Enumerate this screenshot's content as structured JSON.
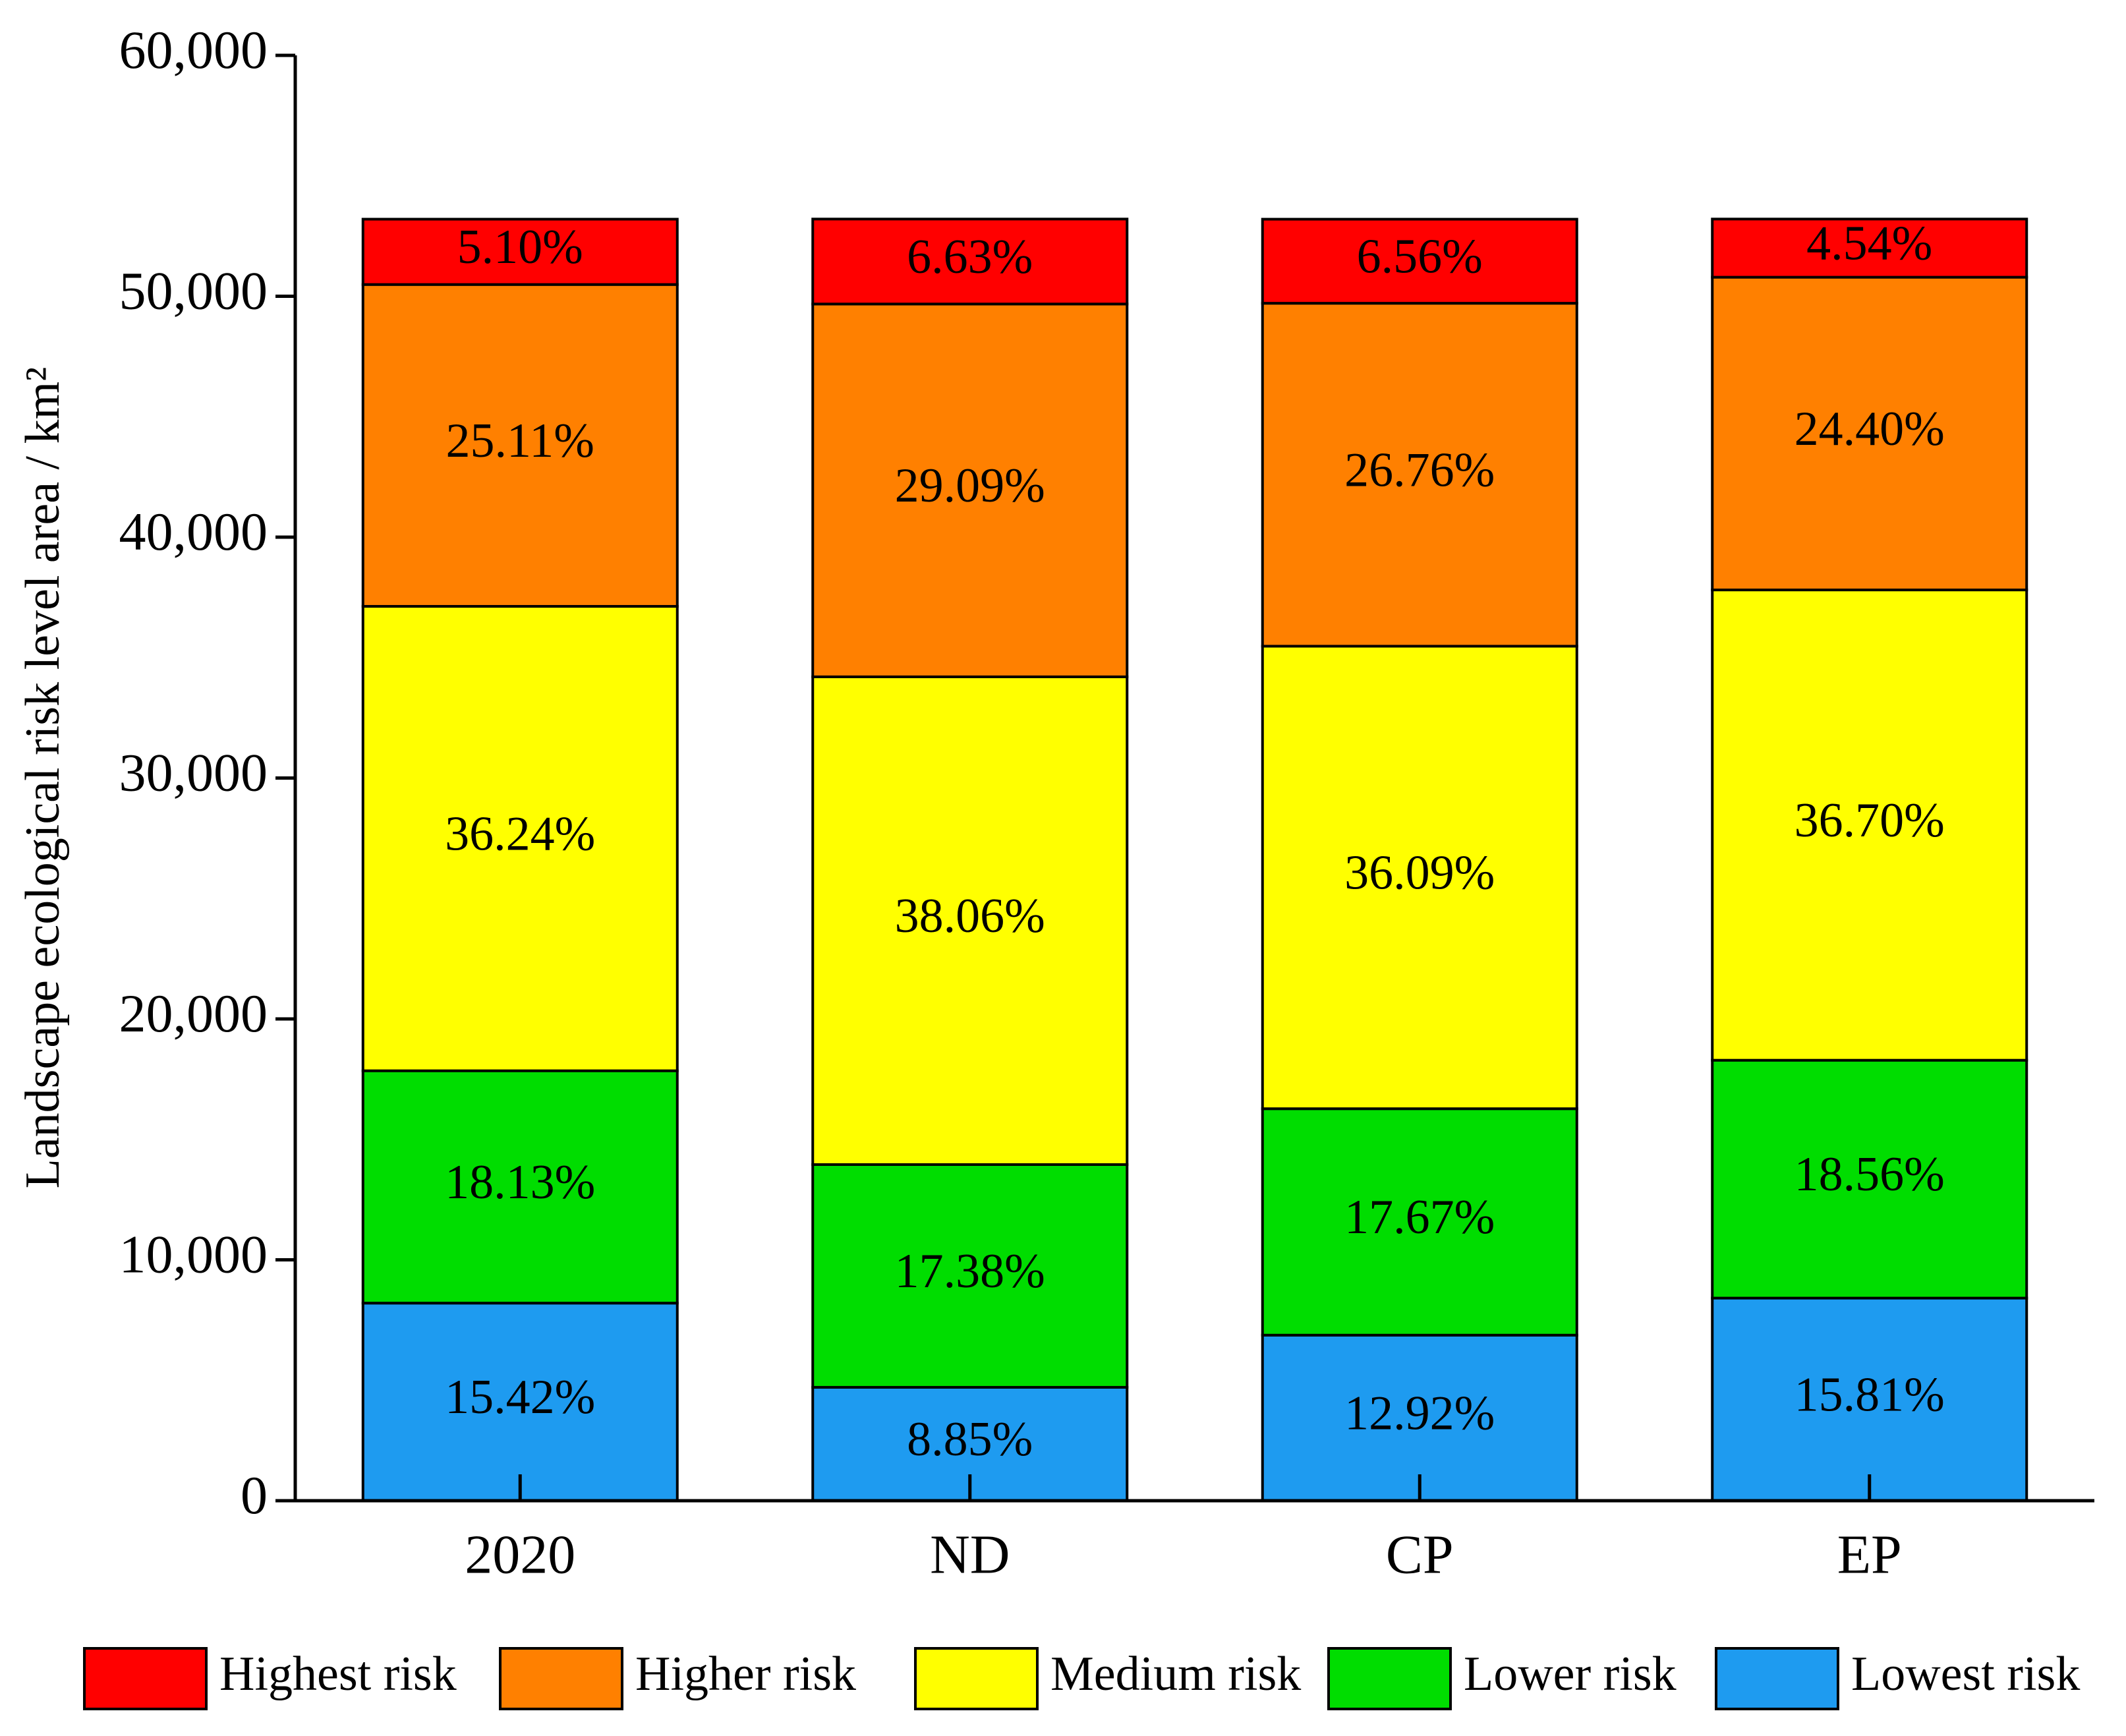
{
  "chart_data": {
    "type": "stacked_bar",
    "y_label": "Landscape ecological risk level area / km²",
    "categories": [
      "2020",
      "ND",
      "CP",
      "EP"
    ],
    "ylim": [
      0,
      60000
    ],
    "yticks": [
      0,
      {
        "value": 10000,
        "label": "10,000"
      },
      {
        "value": 20000,
        "label": "20,000"
      },
      {
        "value": 30000,
        "label": "30,000"
      },
      {
        "value": 40000,
        "label": "40,000"
      },
      {
        "value": 50000,
        "label": "50,000"
      },
      {
        "value": 60000,
        "label": "60,000"
      }
    ],
    "legend": "bottom",
    "series": [
      {
        "name": "Lowest risk",
        "color": "#1e9bf0",
        "values": [
          8203,
          4708,
          6873,
          8411
        ],
        "share_labels": [
          "15.42%",
          "8.85%",
          "12.92%",
          "15.81%"
        ]
      },
      {
        "name": "Lower risk",
        "color": "#00dd00",
        "values": [
          9645,
          9246,
          9400,
          9874
        ],
        "share_labels": [
          "18.13%",
          "17.38%",
          "17.67%",
          "18.56%"
        ]
      },
      {
        "name": "Medium risk",
        "color": "#ffff00",
        "values": [
          19280,
          20248,
          19200,
          19524
        ],
        "share_labels": [
          "36.24%",
          "38.06%",
          "36.09%",
          "36.70%"
        ]
      },
      {
        "name": "Higher risk",
        "color": "#ff8000",
        "values": [
          13359,
          15476,
          14236,
          12981
        ],
        "share_labels": [
          "25.11%",
          "29.09%",
          "26.76%",
          "24.40%"
        ]
      },
      {
        "name": "Highest risk",
        "color": "#ff0000",
        "values": [
          2713,
          3527,
          3490,
          2415
        ],
        "share_labels": [
          "5.10%",
          "6.63%",
          "6.56%",
          "4.54%"
        ]
      }
    ]
  }
}
